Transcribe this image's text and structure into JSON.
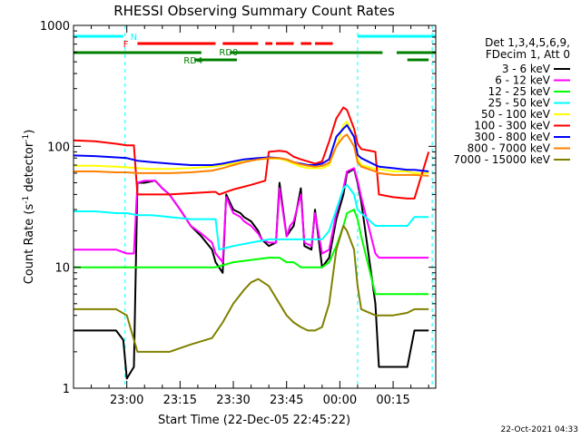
{
  "chart_data": {
    "type": "line",
    "title": "RHESSI Observing Summary Count Rates",
    "xlabel": "Start Time (22-Dec-05 22:45:22)",
    "ylabel_main": "Count Rate (s",
    "ylabel_sup1": "-1",
    "ylabel_mid": " detector",
    "ylabel_sup2": "-1",
    "ylabel_end": ")",
    "yscale": "log",
    "ylim": [
      1,
      1000
    ],
    "y_ticks": [
      {
        "value": 1,
        "label": "1"
      },
      {
        "value": 10,
        "label": "10"
      },
      {
        "value": 100,
        "label": "100"
      },
      {
        "value": 1000,
        "label": "1000"
      }
    ],
    "x_range_min": [
      0,
      102
    ],
    "x_ticks": [
      {
        "min": 15,
        "label": "23:00"
      },
      {
        "min": 30,
        "label": "23:15"
      },
      {
        "min": 45,
        "label": "23:30"
      },
      {
        "min": 60,
        "label": "23:45"
      },
      {
        "min": 75,
        "label": "00:00"
      },
      {
        "min": 90,
        "label": "00:15"
      }
    ],
    "legend_header": [
      "Det 1,3,4,5,6,9,",
      "FDecim 1, Att 0"
    ],
    "legend_position": "right",
    "footer_date": "22-Oct-2021 04:33",
    "night_intervals_min": [
      [
        0,
        18
      ],
      [
        79,
        98
      ]
    ],
    "flag_labels": {
      "night": "N",
      "flare": "F",
      "decimation": "RD0",
      "rd4": "RD4"
    },
    "series": [
      {
        "name": "3 - 6 keV",
        "color": "#000000",
        "x": [
          0,
          6,
          12,
          14,
          15,
          17,
          18,
          20,
          23,
          25,
          27,
          30,
          33,
          36,
          39,
          40,
          42,
          43,
          45,
          47,
          48,
          50,
          52,
          53,
          55,
          57,
          58,
          60,
          61,
          62,
          64,
          65,
          67,
          68,
          70,
          72,
          74,
          76,
          77,
          79,
          80,
          81,
          85,
          86,
          88,
          90,
          92,
          94,
          96,
          97,
          98,
          100
        ],
        "y": [
          3,
          3,
          3,
          2.5,
          1.2,
          1.5,
          50,
          50,
          52,
          45,
          40,
          30,
          22,
          18,
          14,
          11,
          9,
          40,
          30,
          28,
          26,
          24,
          20,
          17,
          15,
          16,
          50,
          18,
          20,
          22,
          45,
          15,
          14,
          30,
          10,
          12,
          25,
          40,
          60,
          65,
          50,
          35,
          5,
          1.5,
          1.5,
          1.5,
          1.5,
          1.5,
          3,
          3,
          3,
          3
        ]
      },
      {
        "name": "6 - 12 keV",
        "color": "#ff00ff",
        "x": [
          0,
          6,
          12,
          15,
          17,
          18,
          20,
          23,
          25,
          27,
          30,
          33,
          36,
          39,
          40,
          42,
          43,
          45,
          47,
          48,
          50,
          52,
          53,
          55,
          57,
          58,
          60,
          61,
          62,
          64,
          65,
          67,
          68,
          70,
          72,
          74,
          76,
          77,
          79,
          80,
          81,
          85,
          86,
          90,
          94,
          96,
          100
        ],
        "y": [
          14,
          14,
          14,
          13,
          13,
          50,
          52,
          52,
          45,
          40,
          30,
          22,
          19,
          16,
          13,
          11,
          38,
          28,
          26,
          24,
          22,
          19,
          17,
          16,
          16,
          45,
          18,
          22,
          24,
          40,
          16,
          15,
          28,
          13,
          14,
          28,
          45,
          62,
          66,
          52,
          38,
          13,
          12,
          12,
          12,
          12,
          12
        ]
      },
      {
        "name": "12 - 25 keV",
        "color": "#00ff00",
        "x": [
          0,
          6,
          12,
          15,
          18,
          22,
          27,
          33,
          39,
          40,
          45,
          50,
          55,
          58,
          60,
          62,
          64,
          66,
          68,
          70,
          72,
          74,
          76,
          77,
          79,
          80,
          81,
          85,
          86,
          90,
          94,
          96,
          100
        ],
        "y": [
          10,
          10,
          10,
          10,
          10,
          10,
          10,
          10,
          10,
          10,
          11,
          11.5,
          12,
          12,
          11,
          11,
          10,
          10,
          10,
          10,
          11,
          15,
          22,
          28,
          30,
          25,
          18,
          6,
          6,
          6,
          6,
          6,
          6
        ]
      },
      {
        "name": "25 - 50 keV",
        "color": "#00ffff",
        "x": [
          0,
          6,
          12,
          15,
          18,
          22,
          27,
          33,
          39,
          40,
          41,
          45,
          50,
          55,
          58,
          60,
          62,
          64,
          66,
          68,
          70,
          72,
          74,
          76,
          77,
          79,
          80,
          81,
          85,
          86,
          90,
          94,
          96,
          100
        ],
        "y": [
          29,
          29,
          28,
          28,
          27,
          27,
          26,
          25,
          25,
          25,
          14,
          15,
          16,
          17,
          17,
          17,
          17,
          17,
          17,
          17,
          17,
          20,
          30,
          45,
          48,
          40,
          30,
          28,
          22,
          22,
          22,
          22,
          26,
          26
        ]
      },
      {
        "name": "50 - 100 keV",
        "color": "#ffff00",
        "x": [
          0,
          6,
          12,
          15,
          18,
          22,
          27,
          33,
          39,
          42,
          45,
          48,
          52,
          55,
          58,
          60,
          62,
          64,
          66,
          68,
          70,
          72,
          74,
          76,
          77,
          79,
          80,
          81,
          85,
          86,
          90,
          94,
          96,
          100
        ],
        "y": [
          69,
          69,
          68,
          67,
          66,
          65,
          65,
          66,
          68,
          70,
          72,
          75,
          78,
          79,
          79,
          76,
          72,
          68,
          66,
          66,
          66,
          70,
          100,
          150,
          160,
          120,
          80,
          70,
          65,
          65,
          62,
          62,
          60,
          60
        ]
      },
      {
        "name": "100 - 300 keV",
        "color": "#ff0000",
        "x": [
          0,
          6,
          12,
          15,
          17,
          18,
          22,
          27,
          33,
          39,
          40,
          41,
          45,
          50,
          54,
          55,
          58,
          60,
          62,
          64,
          66,
          68,
          70,
          72,
          74,
          76,
          77,
          79,
          80,
          81,
          85,
          86,
          90,
          94,
          96,
          100
        ],
        "y": [
          112,
          110,
          105,
          102,
          102,
          40,
          40,
          40,
          41,
          42,
          42,
          40,
          44,
          48,
          52,
          90,
          92,
          90,
          82,
          78,
          75,
          72,
          75,
          110,
          170,
          210,
          200,
          140,
          105,
          95,
          90,
          40,
          38,
          37,
          37,
          90
        ]
      },
      {
        "name": "300 - 800 keV",
        "color": "#0000ff",
        "x": [
          0,
          6,
          12,
          15,
          18,
          22,
          27,
          33,
          39,
          42,
          45,
          48,
          52,
          55,
          58,
          60,
          62,
          64,
          66,
          68,
          70,
          72,
          74,
          76,
          77,
          79,
          80,
          81,
          85,
          86,
          90,
          94,
          96,
          100
        ],
        "y": [
          84,
          83,
          81,
          80,
          76,
          74,
          72,
          70,
          70,
          72,
          75,
          78,
          80,
          81,
          80,
          78,
          74,
          72,
          70,
          70,
          72,
          78,
          120,
          140,
          150,
          120,
          85,
          80,
          70,
          68,
          66,
          64,
          64,
          62
        ]
      },
      {
        "name": "800 - 7000 keV",
        "color": "#ff8000",
        "x": [
          0,
          6,
          12,
          15,
          18,
          22,
          27,
          33,
          39,
          42,
          45,
          48,
          52,
          55,
          58,
          60,
          62,
          64,
          66,
          68,
          70,
          72,
          74,
          76,
          77,
          79,
          80,
          81,
          85,
          86,
          90,
          94,
          96,
          100
        ],
        "y": [
          62,
          62,
          61,
          61,
          60,
          60,
          60,
          61,
          63,
          66,
          70,
          74,
          78,
          80,
          80,
          78,
          74,
          71,
          69,
          68,
          69,
          73,
          100,
          120,
          125,
          100,
          74,
          68,
          62,
          60,
          58,
          58,
          58,
          57
        ]
      },
      {
        "name": "7000 - 15000 keV",
        "color": "#808000",
        "x": [
          0,
          6,
          12,
          15,
          18,
          22,
          27,
          33,
          39,
          42,
          45,
          48,
          50,
          52,
          55,
          58,
          60,
          62,
          64,
          66,
          68,
          70,
          72,
          74,
          76,
          77,
          79,
          80,
          81,
          85,
          86,
          90,
          94,
          96,
          100
        ],
        "y": [
          4.5,
          4.5,
          4.5,
          4,
          2,
          2,
          2,
          2.3,
          2.6,
          3.5,
          5,
          6.5,
          7.5,
          8,
          7,
          5,
          4,
          3.5,
          3.2,
          3,
          3,
          3.2,
          5,
          14,
          22,
          20,
          14,
          7,
          4.5,
          4,
          4,
          4,
          4.2,
          4.5,
          4.5
        ]
      }
    ],
    "flag_segments_min": {
      "night_left": [
        0,
        14
      ],
      "night_right": [
        80,
        102
      ],
      "flare_red": [
        [
          18,
          40
        ],
        [
          42,
          52
        ],
        [
          54,
          56
        ],
        [
          57,
          62
        ],
        [
          64,
          67
        ],
        [
          68,
          73
        ]
      ],
      "decim_upper": [
        [
          0,
          36
        ],
        [
          44,
          87
        ],
        [
          91,
          102
        ]
      ],
      "decim_rd4": [
        [
          34,
          46
        ]
      ],
      "flare_dash_right": [
        [
          94,
          100
        ]
      ]
    }
  }
}
